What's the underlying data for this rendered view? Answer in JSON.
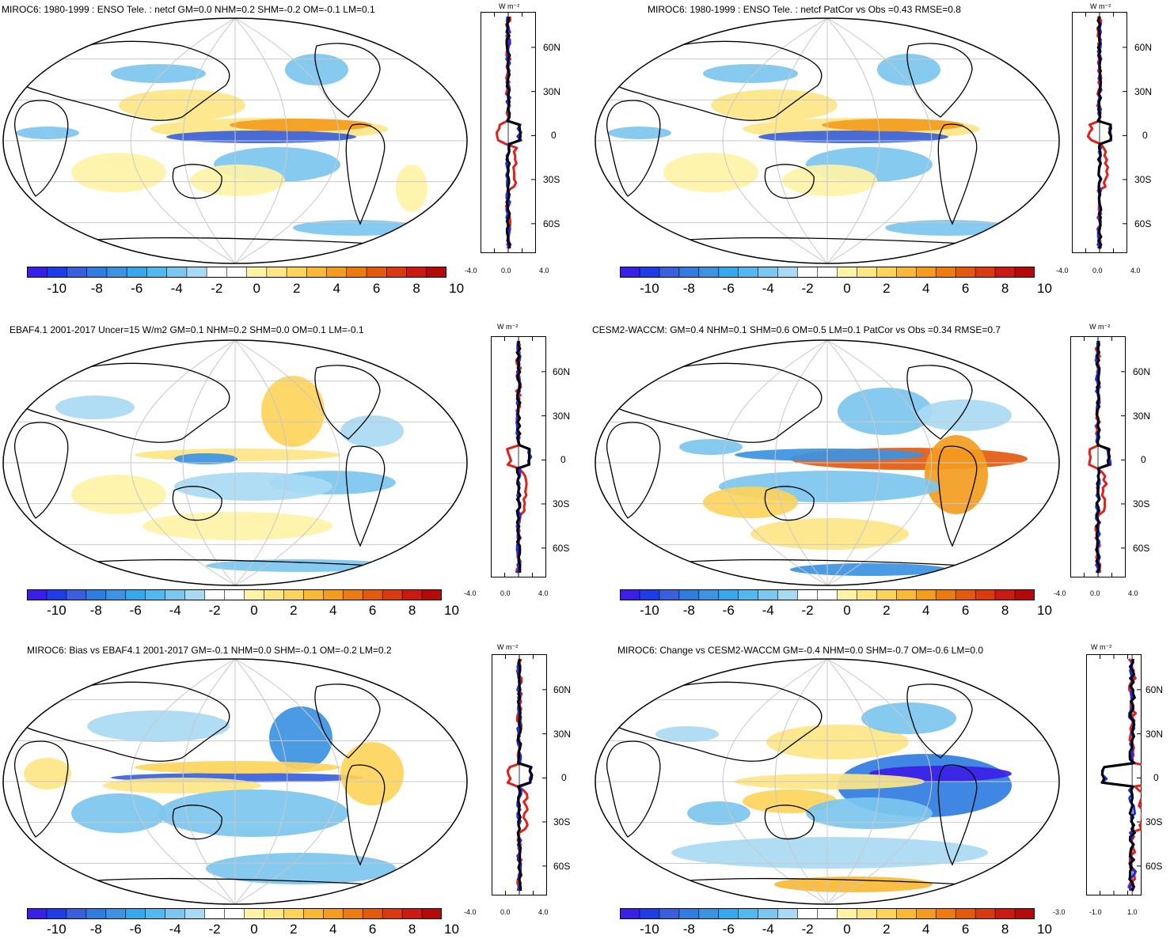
{
  "colorbar": {
    "labels": [
      "-10",
      "-8",
      "-6",
      "-4",
      "-2",
      "0",
      "2",
      "4",
      "6",
      "8",
      "10"
    ],
    "colors": [
      "#3a1fe6",
      "#1f3de6",
      "#3a5fdc",
      "#2f7de0",
      "#3c93e2",
      "#36a9ec",
      "#52b8ee",
      "#7cc6ef",
      "#a9daf3",
      "#ffffff",
      "#ffffff",
      "#fff3a6",
      "#fde686",
      "#fdd45a",
      "#f9b934",
      "#f39c1e",
      "#ec7c12",
      "#e35a0e",
      "#d93a10",
      "#cb1a14",
      "#b40a0a"
    ]
  },
  "profile": {
    "lat_labels": [
      "60N",
      "30N",
      "0",
      "30S",
      "60S"
    ],
    "unit": "W m⁻²"
  },
  "panels": [
    {
      "title": "MIROC6: 1980-1999 : ENSO Tele. : netcf GM=0.0 NHM=0.2 SHM=-0.2 OM=-0.1 LM=0.1",
      "xticks": [
        "-4.0",
        "0.0",
        "4.0"
      ]
    },
    {
      "title": "MIROC6: 1980-1999 : ENSO Tele. : netcf PatCor vs Obs =0.43 RMSE=0.8",
      "xticks": [
        "-4.0",
        "0.0",
        "4.0"
      ]
    },
    {
      "title": "EBAF4.1 2001-2017 Uncer=15 W/m2 GM=0.1 NHM=0.2 SHM=0.0 OM=0.1 LM=-0.1",
      "xticks": [
        "-4.0",
        "0.0",
        "4.0"
      ]
    },
    {
      "title": "CESM2-WACCM: GM=0.4 NHM=0.1 SHM=0.6 OM=0.5 LM=0.1 PatCor vs Obs =0.34 RMSE=0.7",
      "xticks": [
        "-4.0",
        "0.0",
        "4.0"
      ]
    },
    {
      "title": "MIROC6: Bias vs EBAF4.1 2001-2017 GM=-0.1 NHM=0.0 SHM=-0.1 OM=-0.2 LM=0.2",
      "xticks": [
        "-4.0",
        "0.0",
        "4.0"
      ]
    },
    {
      "title": "MIROC6: Change vs CESM2-WACCM GM=-0.4 NHM=0.0 SHM=-0.7 OM=-0.6 LM=0.0",
      "xticks": [
        "-3.0",
        "-1.0",
        "1.0"
      ]
    }
  ]
}
